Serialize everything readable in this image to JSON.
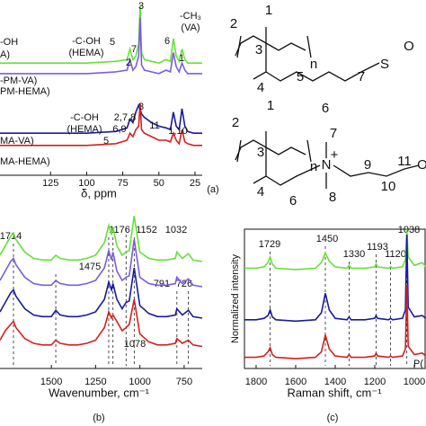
{
  "chart_data": [
    {
      "type": "line",
      "x_label": "δ, ppm",
      "xlim": [
        160,
        20
      ],
      "ylim": [
        0,
        100
      ],
      "xticks": [
        125,
        100,
        75,
        50,
        25
      ],
      "x": [
        160,
        140,
        120,
        100,
        80,
        72,
        70,
        68,
        66,
        64,
        63,
        62,
        60,
        55,
        50,
        45,
        42,
        40,
        38,
        36,
        34,
        32,
        30,
        26,
        22,
        20
      ],
      "series": [
        {
          "color": "#66e03a",
          "values": [
            64,
            64,
            64,
            64,
            65,
            66,
            72,
            66,
            68,
            75,
            97,
            70,
            66,
            65,
            64,
            66,
            65,
            78,
            68,
            65,
            72,
            66,
            64,
            64,
            64,
            64
          ]
        },
        {
          "color": "#7b5ce0",
          "values": [
            58,
            58,
            58,
            58,
            59,
            60,
            66,
            60,
            62,
            68,
            90,
            63,
            60,
            59,
            58,
            60,
            59,
            70,
            62,
            59,
            64,
            60,
            58,
            58,
            58,
            58
          ]
        },
        {
          "color": "#1a1a9e",
          "values": [
            24,
            24,
            24,
            24,
            25,
            27,
            32,
            30,
            36,
            40,
            38,
            35,
            33,
            30,
            28,
            27,
            26,
            36,
            28,
            26,
            38,
            28,
            25,
            24,
            24,
            24
          ]
        },
        {
          "color": "#d42020",
          "values": [
            17,
            17,
            17,
            17,
            18,
            20,
            24,
            22,
            26,
            28,
            41,
            26,
            24,
            22,
            20,
            20,
            19,
            24,
            20,
            18,
            26,
            19,
            18,
            17,
            17,
            17
          ]
        }
      ],
      "annotations": [
        {
          "text": "-OH",
          "color": "#111"
        },
        {
          "text": "A)",
          "color": "#111"
        },
        {
          "text": "-PM-VA)",
          "color": "#111"
        },
        {
          "text": "PM-HEMA)",
          "color": "#111"
        },
        {
          "text": "MA-VA)",
          "color": "#111"
        },
        {
          "text": "MA-HEMA)",
          "color": "#111"
        },
        {
          "text": "-C-OH",
          "color": "#111"
        },
        {
          "text": "(HEMA)",
          "color": "#111"
        },
        {
          "text": "5",
          "color": "#3fae1e"
        },
        {
          "text": "2",
          "color": "#3fae1e"
        },
        {
          "text": "7",
          "color": "#3fae1e"
        },
        {
          "text": "3",
          "color": "#3fae1e"
        },
        {
          "text": "6",
          "color": "#3fae1e"
        },
        {
          "text": "-CH₃",
          "color": "#111"
        },
        {
          "text": "(VA)",
          "color": "#111"
        },
        {
          "text": "1",
          "color": "#3fae1e"
        },
        {
          "text": "-C-OH",
          "color": "#111"
        },
        {
          "text": "(HEMA)",
          "color": "#111"
        },
        {
          "text": "3",
          "color": "#d42020"
        },
        {
          "text": "2,7,8",
          "color": "#d42020"
        },
        {
          "text": "6,9",
          "color": "#d42020"
        },
        {
          "text": "5",
          "color": "#d42020"
        },
        {
          "text": "11",
          "color": "#d42020"
        },
        {
          "text": "1,10",
          "color": "#d42020"
        }
      ]
    },
    {
      "type": "line",
      "x_label": "Wavenumber, cm⁻¹",
      "xlim": [
        1790,
        648
      ],
      "ylim": [
        0,
        100
      ],
      "xticks": [
        1500,
        1250,
        1000,
        750
      ],
      "x": [
        1790,
        1760,
        1730,
        1714,
        1700,
        1650,
        1600,
        1550,
        1500,
        1475,
        1450,
        1400,
        1350,
        1300,
        1250,
        1200,
        1176,
        1160,
        1152,
        1130,
        1100,
        1078,
        1060,
        1032,
        1000,
        950,
        900,
        850,
        800,
        791,
        760,
        726,
        700,
        648
      ],
      "series": [
        {
          "color": "#66e03a",
          "values": [
            72,
            78,
            84,
            86,
            82,
            74,
            70,
            69,
            69,
            72,
            70,
            69,
            69,
            70,
            72,
            80,
            91,
            85,
            90,
            78,
            72,
            74,
            75,
            97,
            74,
            70,
            69,
            69,
            70,
            74,
            70,
            73,
            69,
            68
          ]
        },
        {
          "color": "#7b5ce0",
          "values": [
            56,
            62,
            68,
            70,
            66,
            58,
            54,
            53,
            53,
            56,
            54,
            53,
            53,
            54,
            56,
            64,
            75,
            69,
            74,
            62,
            56,
            58,
            59,
            82,
            58,
            54,
            53,
            53,
            54,
            58,
            54,
            57,
            53,
            52
          ]
        },
        {
          "color": "#1a1a9e",
          "values": [
            36,
            42,
            48,
            50,
            46,
            38,
            34,
            33,
            33,
            37,
            34,
            33,
            33,
            34,
            36,
            44,
            55,
            50,
            54,
            44,
            38,
            42,
            43,
            64,
            40,
            35,
            33,
            33,
            34,
            38,
            34,
            37,
            33,
            32
          ]
        },
        {
          "color": "#d42020",
          "values": [
            18,
            24,
            28,
            30,
            26,
            19,
            16,
            15,
            15,
            18,
            16,
            15,
            15,
            16,
            18,
            26,
            36,
            32,
            34,
            30,
            24,
            26,
            28,
            44,
            22,
            17,
            15,
            15,
            16,
            19,
            16,
            18,
            15,
            14
          ]
        }
      ],
      "peak_labels": [
        1714,
        1475,
        1176,
        1152,
        1032,
        791,
        726,
        1078
      ]
    },
    {
      "type": "line",
      "x_label": "Raman shift, cm⁻¹",
      "y_label": "Normalized intensity",
      "xlim": [
        1859,
        941
      ],
      "ylim": [
        0,
        100
      ],
      "xticks": [
        1800,
        1600,
        1400,
        1200,
        1000
      ],
      "x": [
        1859,
        1800,
        1760,
        1740,
        1729,
        1718,
        1700,
        1600,
        1500,
        1470,
        1450,
        1430,
        1400,
        1340,
        1330,
        1320,
        1250,
        1200,
        1193,
        1186,
        1130,
        1120,
        1110,
        1060,
        1045,
        1038,
        1031,
        1000,
        960,
        941
      ],
      "series": [
        {
          "color": "#66e03a",
          "values": [
            72,
            72,
            73,
            76,
            80,
            75,
            72,
            71,
            72,
            76,
            83,
            77,
            73,
            72,
            74,
            72,
            72,
            73,
            75,
            73,
            72,
            73,
            72,
            73,
            78,
            100,
            80,
            74,
            76,
            73
          ]
        },
        {
          "color": "#1a1a9e",
          "values": [
            35,
            35,
            36,
            38,
            42,
            37,
            35,
            34,
            35,
            40,
            54,
            42,
            36,
            35,
            37,
            35,
            35,
            36,
            38,
            36,
            35,
            36,
            35,
            36,
            42,
            96,
            44,
            37,
            38,
            36
          ]
        },
        {
          "color": "#d42020",
          "values": [
            8,
            8,
            9,
            12,
            15,
            10,
            8,
            7,
            8,
            12,
            24,
            14,
            9,
            8,
            10,
            8,
            8,
            9,
            11,
            9,
            8,
            9,
            8,
            9,
            14,
            60,
            16,
            10,
            11,
            9
          ]
        }
      ],
      "peak_labels": [
        1729,
        1450,
        1330,
        1193,
        1120,
        1038
      ],
      "annotation": "P("
    }
  ],
  "structures": {
    "top": [
      {
        "text": "1",
        "color": "#3fae1e"
      },
      {
        "text": "2",
        "color": "#3fae1e"
      },
      {
        "text": "3",
        "color": "#3fae1e"
      },
      {
        "text": "n",
        "color": "#111"
      },
      {
        "text": "4",
        "color": "#3fae1e"
      },
      {
        "text": "5",
        "color": "#3fae1e"
      },
      {
        "text": "7",
        "color": "#3fae1e"
      },
      {
        "text": "6",
        "color": "#3fae1e"
      },
      {
        "text": "S",
        "color": "#111"
      },
      {
        "text": "O",
        "color": "#111"
      }
    ],
    "bottom": [
      {
        "text": "1",
        "color": "#d42020"
      },
      {
        "text": "2",
        "color": "#d42020"
      },
      {
        "text": "3",
        "color": "#d42020"
      },
      {
        "text": "n",
        "color": "#111"
      },
      {
        "text": "4",
        "color": "#d42020"
      },
      {
        "text": "7",
        "color": "#d42020"
      },
      {
        "text": "N",
        "color": "#111"
      },
      {
        "text": "+",
        "color": "#111"
      },
      {
        "text": "9",
        "color": "#d42020"
      },
      {
        "text": "11",
        "color": "#d42020"
      },
      {
        "text": "6",
        "color": "#d42020"
      },
      {
        "text": "8",
        "color": "#d42020"
      },
      {
        "text": "10",
        "color": "#d42020"
      },
      {
        "text": "O",
        "color": "#111"
      }
    ]
  },
  "panel_labels": [
    "(a)",
    "(b)",
    "(c)"
  ]
}
